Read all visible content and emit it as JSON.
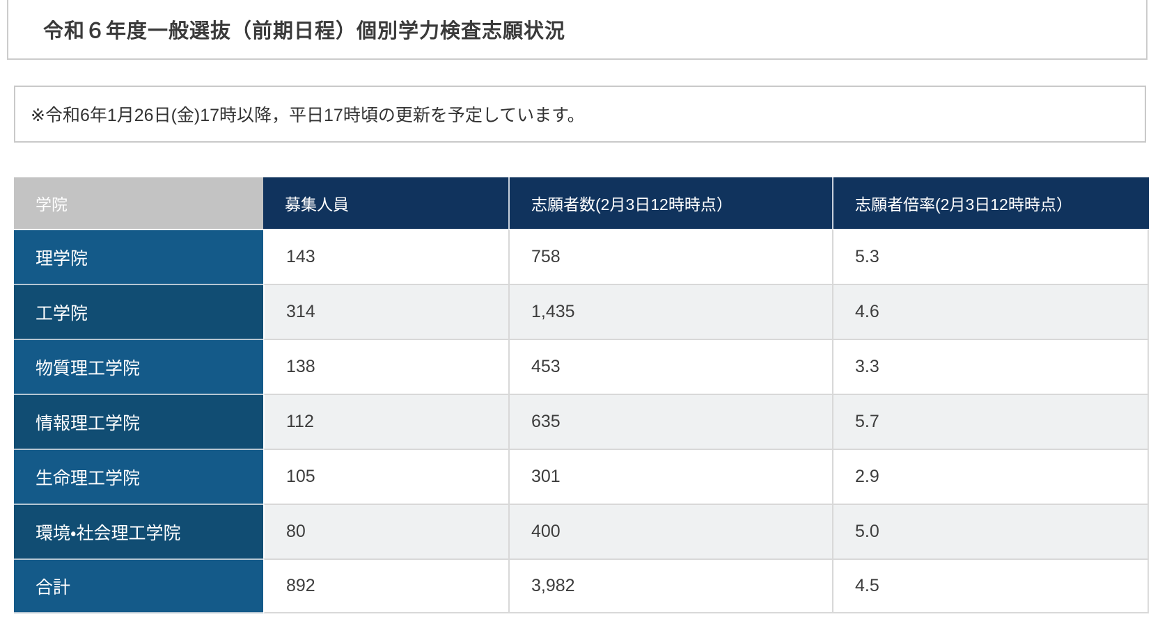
{
  "page": {
    "title": "令和６年度一般選抜（前期日程）個別学力検査志願状況",
    "notice": "※令和6年1月26日(金)17時以降，平日17時頃の更新を予定しています。"
  },
  "colors": {
    "header_navy": "#10335d",
    "header_gray": "#c3c3c3",
    "row_blue_light": "#145a89",
    "row_blue_dark": "#114d73",
    "row_alt_bg": "#eff1f2",
    "border_light": "#d8d8d8"
  },
  "table": {
    "columns": [
      "学院",
      "募集人員",
      "志願者数(2月3日12時時点）",
      "志願者倍率(2月3日12時時点）"
    ],
    "rows": [
      {
        "name": "理学院",
        "capacity": "143",
        "applicants": "758",
        "ratio": "5.3"
      },
      {
        "name": "工学院",
        "capacity": "314",
        "applicants": "1,435",
        "ratio": "4.6"
      },
      {
        "name": "物質理工学院",
        "capacity": "138",
        "applicants": "453",
        "ratio": "3.3"
      },
      {
        "name": "情報理工学院",
        "capacity": "112",
        "applicants": "635",
        "ratio": "5.7"
      },
      {
        "name": "生命理工学院",
        "capacity": "105",
        "applicants": "301",
        "ratio": "2.9"
      },
      {
        "name": "環境・社会理工学院",
        "capacity": "80",
        "applicants": "400",
        "ratio": "5.0"
      },
      {
        "name": "合計",
        "capacity": "892",
        "applicants": "3,982",
        "ratio": "4.5"
      }
    ]
  }
}
